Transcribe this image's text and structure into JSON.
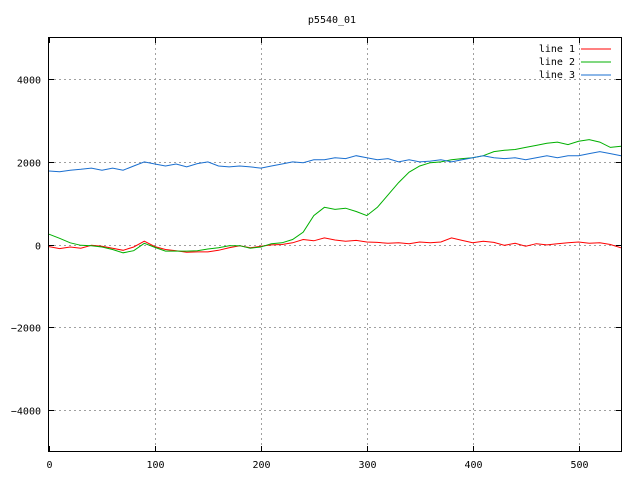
{
  "chart_data": {
    "type": "line",
    "title": "p5540_01",
    "xlabel": "",
    "ylabel": "",
    "xlim": [
      0,
      540
    ],
    "ylim": [
      -5000,
      5000
    ],
    "xticks": [
      0,
      100,
      200,
      300,
      400,
      500
    ],
    "xtick_labels": [
      "0",
      "100",
      "200",
      "300",
      "400",
      "500"
    ],
    "yticks": [
      -4000,
      -2000,
      0,
      2000,
      4000
    ],
    "ytick_labels": [
      "−4000",
      "−2000",
      "0",
      "2000",
      "4000"
    ],
    "grid": true,
    "legend_position": "top-right",
    "x": [
      0,
      10,
      20,
      30,
      40,
      50,
      60,
      70,
      80,
      90,
      100,
      110,
      120,
      130,
      140,
      150,
      160,
      170,
      180,
      190,
      200,
      210,
      220,
      230,
      240,
      250,
      260,
      270,
      280,
      290,
      300,
      310,
      320,
      330,
      340,
      350,
      360,
      370,
      380,
      390,
      400,
      410,
      420,
      430,
      440,
      450,
      460,
      470,
      480,
      490,
      500,
      510,
      520,
      530,
      540
    ],
    "series": [
      {
        "name": "line 1",
        "color": "#ff0000",
        "values": [
          -50,
          -100,
          -60,
          -90,
          -20,
          -40,
          -90,
          -140,
          -60,
          80,
          -50,
          -120,
          -150,
          -190,
          -180,
          -180,
          -140,
          -80,
          -30,
          -80,
          -40,
          -10,
          0,
          40,
          120,
          90,
          160,
          110,
          80,
          100,
          60,
          50,
          30,
          40,
          20,
          60,
          40,
          60,
          160,
          100,
          40,
          80,
          50,
          -20,
          30,
          -40,
          20,
          -10,
          20,
          40,
          60,
          30,
          40,
          0,
          -80
        ]
      },
      {
        "name": "line 2",
        "color": "#00b000",
        "values": [
          250,
          150,
          40,
          -20,
          -30,
          -60,
          -120,
          -200,
          -150,
          30,
          -70,
          -160,
          -160,
          -160,
          -150,
          -110,
          -80,
          -30,
          -30,
          -90,
          -60,
          20,
          40,
          120,
          300,
          700,
          900,
          850,
          880,
          800,
          700,
          900,
          1200,
          1500,
          1750,
          1900,
          1980,
          2000,
          2050,
          2080,
          2100,
          2150,
          2250,
          2280,
          2300,
          2350,
          2400,
          2450,
          2480,
          2420,
          2500,
          2540,
          2480,
          2350,
          2380
        ]
      },
      {
        "name": "line 3",
        "color": "#1a6fd0",
        "values": [
          1780,
          1760,
          1800,
          1820,
          1850,
          1800,
          1850,
          1800,
          1900,
          2000,
          1950,
          1900,
          1950,
          1880,
          1960,
          2000,
          1900,
          1880,
          1900,
          1880,
          1850,
          1900,
          1950,
          2000,
          1980,
          2050,
          2050,
          2100,
          2080,
          2150,
          2100,
          2050,
          2080,
          2000,
          2050,
          2000,
          2020,
          2050,
          2000,
          2050,
          2100,
          2150,
          2100,
          2080,
          2100,
          2050,
          2100,
          2150,
          2100,
          2150,
          2150,
          2200,
          2250,
          2200,
          2150
        ]
      }
    ]
  }
}
